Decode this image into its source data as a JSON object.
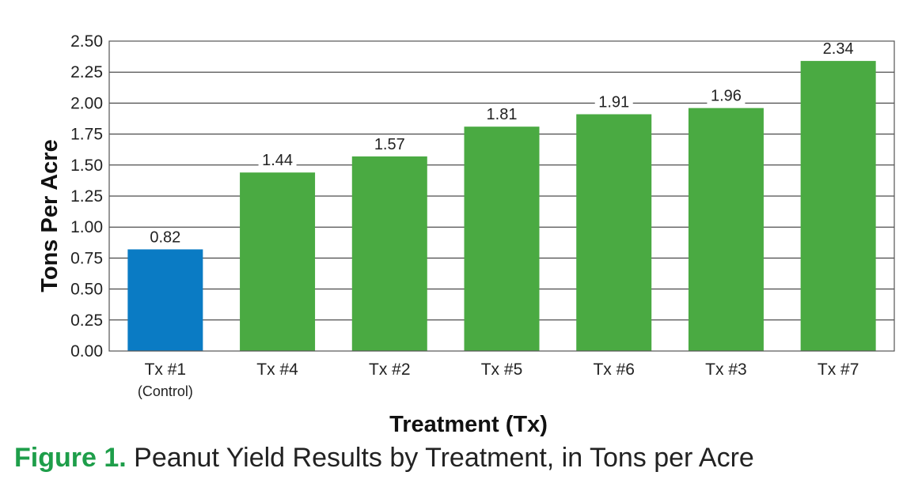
{
  "chart_data": {
    "type": "bar",
    "categories": [
      "Tx #1",
      "Tx #4",
      "Tx #2",
      "Tx #5",
      "Tx #6",
      "Tx #3",
      "Tx #7"
    ],
    "category_sublabels": [
      "(Control)",
      "",
      "",
      "",
      "",
      "",
      ""
    ],
    "values": [
      0.82,
      1.44,
      1.57,
      1.81,
      1.91,
      1.96,
      2.34
    ],
    "data_labels": [
      "0.82",
      "1.44",
      "1.57",
      "1.81",
      "1.91",
      "1.96",
      "2.34"
    ],
    "bar_colors": [
      "#0a7bc4",
      "#4aaa42",
      "#4aaa42",
      "#4aaa42",
      "#4aaa42",
      "#4aaa42",
      "#4aaa42"
    ],
    "xlabel": "Treatment (Tx)",
    "ylabel": "Tons Per Acre",
    "ylim": [
      0,
      2.5
    ],
    "yticks": [
      "0.00",
      "0.25",
      "0.50",
      "0.75",
      "1.00",
      "1.25",
      "1.50",
      "1.75",
      "2.00",
      "2.25",
      "2.50"
    ],
    "grid": "horizontal",
    "legend": "none"
  },
  "caption": {
    "figure_label": "Figure 1.",
    "text": " Peanut Yield Results by Treatment, in Tons per Acre"
  },
  "colors": {
    "control_bar": "#0a7bc4",
    "treatment_bar": "#4aaa42",
    "figure_label": "#1e9e4a",
    "gridline": "#222222"
  }
}
